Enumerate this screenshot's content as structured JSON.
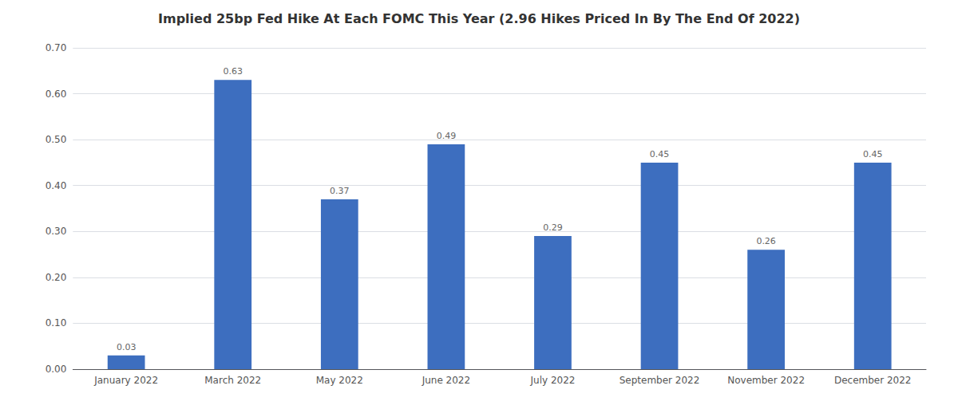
{
  "chart_data": {
    "type": "bar",
    "title": "Implied 25bp Fed Hike At Each FOMC This Year (2.96 Hikes Priced In By The End Of 2022)",
    "categories": [
      "January 2022",
      "March 2022",
      "May 2022",
      "June 2022",
      "July 2022",
      "September 2022",
      "November 2022",
      "December 2022"
    ],
    "values": [
      0.03,
      0.63,
      0.37,
      0.49,
      0.29,
      0.45,
      0.26,
      0.45
    ],
    "color": "#3d6ebf",
    "ylim": [
      0,
      0.7
    ],
    "yticks": [
      {
        "value": 0.0,
        "label": "0.00"
      },
      {
        "value": 0.1,
        "label": "0.10"
      },
      {
        "value": 0.2,
        "label": "0.20"
      },
      {
        "value": 0.3,
        "label": "0.30"
      },
      {
        "value": 0.4,
        "label": "0.40"
      },
      {
        "value": 0.5,
        "label": "0.50"
      },
      {
        "value": 0.6,
        "label": "0.60"
      },
      {
        "value": 0.7,
        "label": "0.70"
      }
    ],
    "grid": true,
    "data_labels": true
  }
}
